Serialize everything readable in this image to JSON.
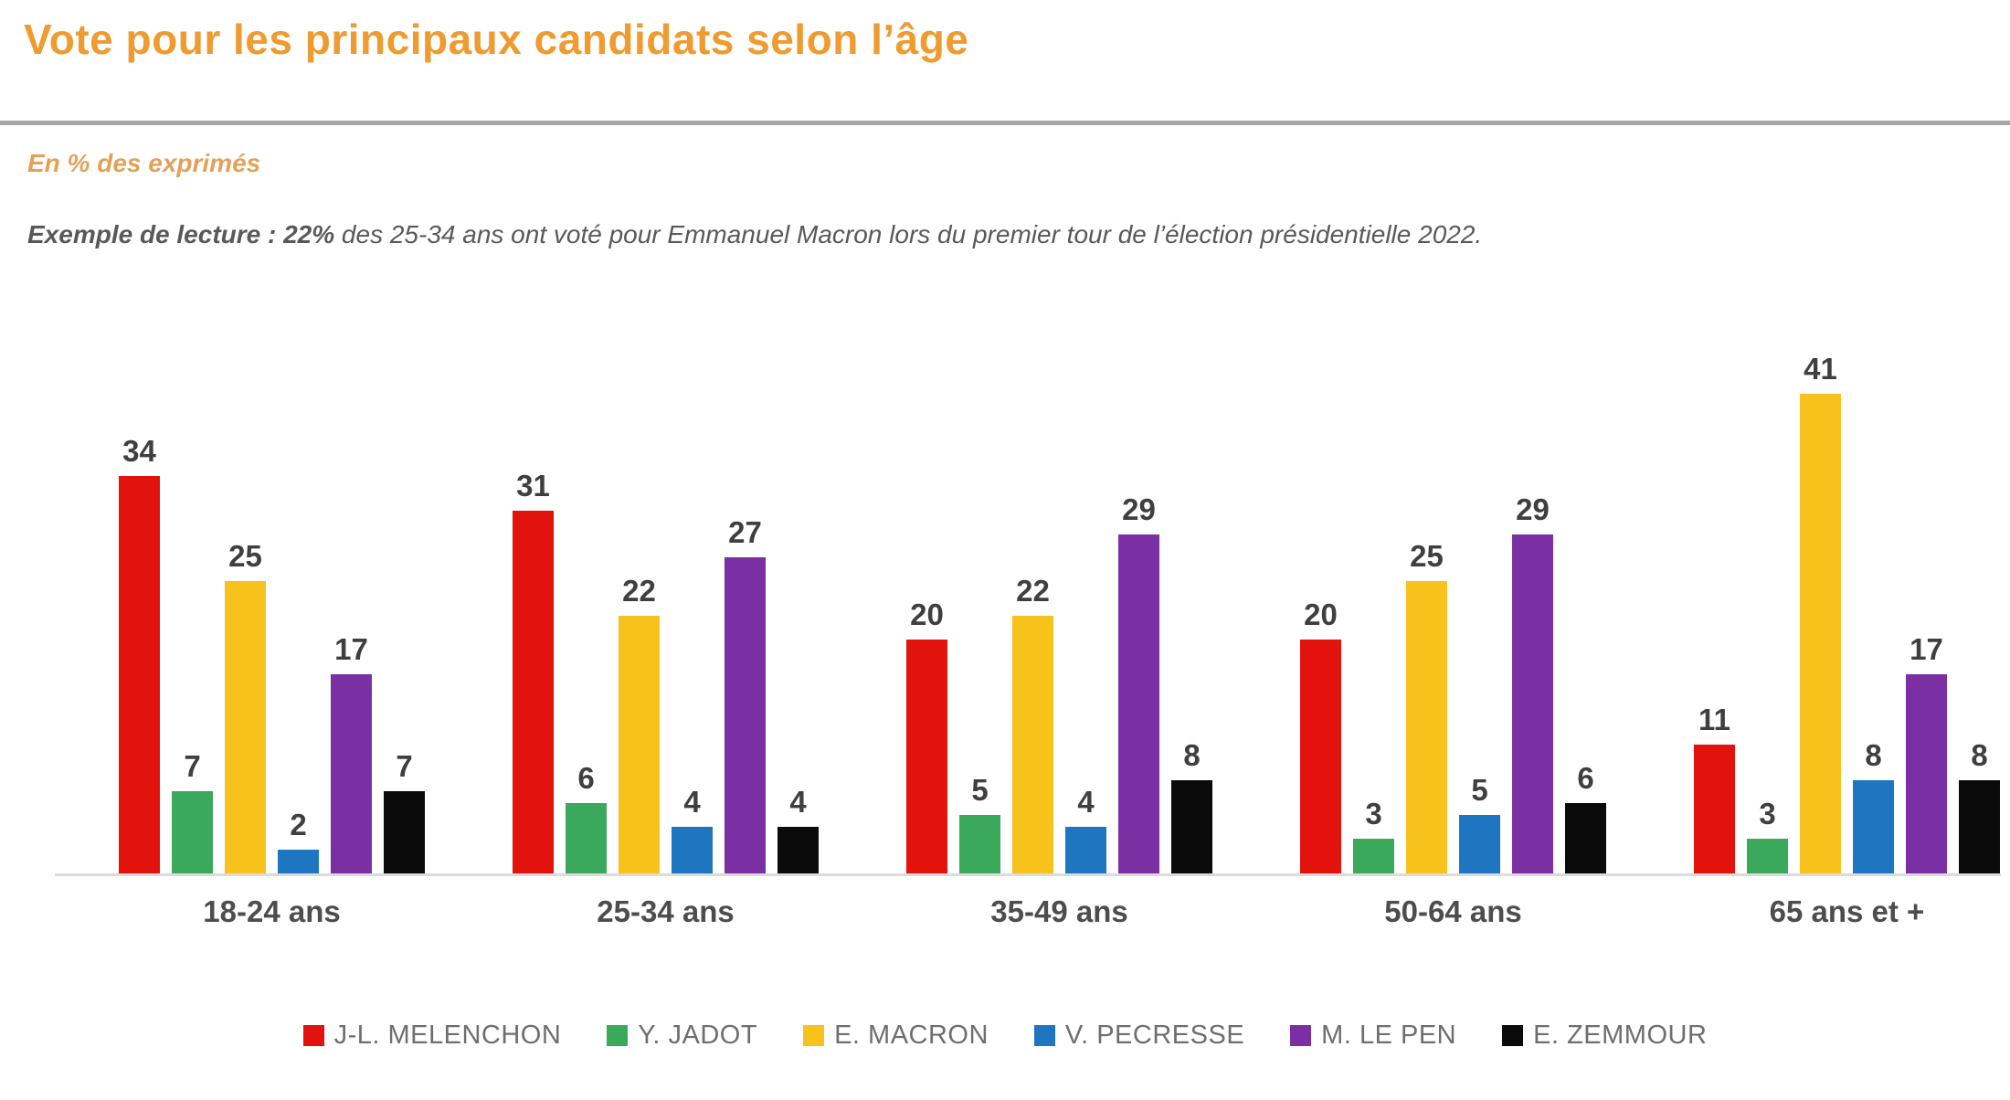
{
  "header": {
    "title": "Vote pour les principaux candidats selon l’âge",
    "subtitle": "En % des exprimés",
    "reading_example": {
      "lead": "Exemple de lecture : ",
      "highlight": "22%",
      "rest": " des 25-34 ans ont voté pour Emmanuel Macron lors du premier tour de l’élection présidentielle 2022."
    }
  },
  "colors": {
    "title_orange": "#ee9b2f",
    "subtitle_orange": "#e3a158",
    "note_gray": "#595959",
    "divider_gray": "#a7a7a7",
    "baseline_gray": "#dbdbdb"
  },
  "chart_data": {
    "type": "bar",
    "unit": "% des exprimés",
    "title": "Vote pour les principaux candidats selon l’âge",
    "categories": [
      "18-24 ans",
      "25-34 ans",
      "35-49 ans",
      "50-64 ans",
      "65 ans et +"
    ],
    "series": [
      {
        "name": "J-L. MELENCHON",
        "color": "#e2130d",
        "values": [
          34,
          31,
          20,
          20,
          11
        ]
      },
      {
        "name": "Y. JADOT",
        "color": "#3aa95c",
        "values": [
          7,
          6,
          5,
          3,
          3
        ]
      },
      {
        "name": "E. MACRON",
        "color": "#f8c21d",
        "values": [
          25,
          22,
          22,
          25,
          41
        ]
      },
      {
        "name": "V. PECRESSE",
        "color": "#1e76c0",
        "values": [
          2,
          4,
          4,
          5,
          8
        ]
      },
      {
        "name": "M. LE PEN",
        "color": "#7a2fa3",
        "values": [
          17,
          27,
          29,
          29,
          17
        ]
      },
      {
        "name": "E. ZEMMOUR",
        "color": "#0b0b0b",
        "values": [
          7,
          4,
          8,
          6,
          8
        ]
      }
    ],
    "ylim": [
      0,
      45
    ],
    "value_labels": true,
    "grid": false,
    "legend_position": "bottom"
  }
}
